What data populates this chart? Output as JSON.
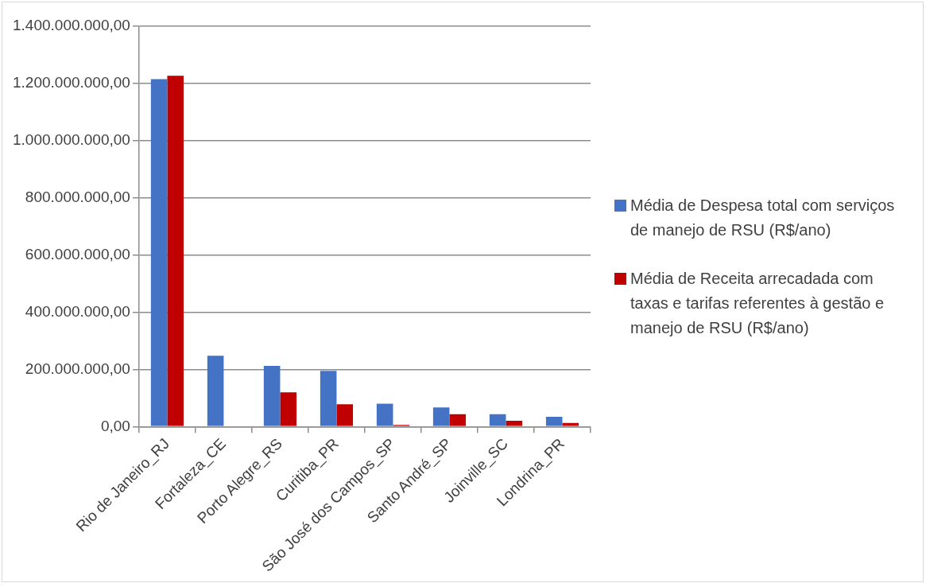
{
  "chart_data": {
    "type": "bar",
    "categories": [
      "Rio de Janeiro_RJ",
      "Fortaleza_CE",
      "Porto Alegre_RS",
      "Curitiba_PR",
      "São José dos Campos_SP",
      "Santo André_SP",
      "Joinville_SC",
      "Londrina_PR"
    ],
    "series": [
      {
        "name": "Média de Despesa total com serviços de manejo de RSU (R$/ano)",
        "color": "#4472c4",
        "values": [
          1215000000,
          248000000,
          212000000,
          195000000,
          80000000,
          67000000,
          43000000,
          34000000
        ]
      },
      {
        "name": "Média de Receita arrecadada com taxas e tarifas referentes à gestão e manejo de RSU (R$/ano)",
        "color": "#c00000",
        "values": [
          1227000000,
          null,
          120000000,
          78000000,
          6000000,
          43000000,
          20000000,
          13000000
        ]
      }
    ],
    "ylim": [
      0,
      1400000000
    ],
    "yticks": [
      {
        "value": 0,
        "label": "0,00"
      },
      {
        "value": 200000000,
        "label": "200.000.000,00"
      },
      {
        "value": 400000000,
        "label": "400.000.000,00"
      },
      {
        "value": 600000000,
        "label": "600.000.000,00"
      },
      {
        "value": 800000000,
        "label": "800.000.000,00"
      },
      {
        "value": 1000000000,
        "label": "1.000.000.000,00"
      },
      {
        "value": 1200000000,
        "label": "1.200.000.000,00"
      },
      {
        "value": 1400000000,
        "label": "1.400.000.000,00"
      }
    ],
    "grid": "y",
    "legend": "right"
  }
}
